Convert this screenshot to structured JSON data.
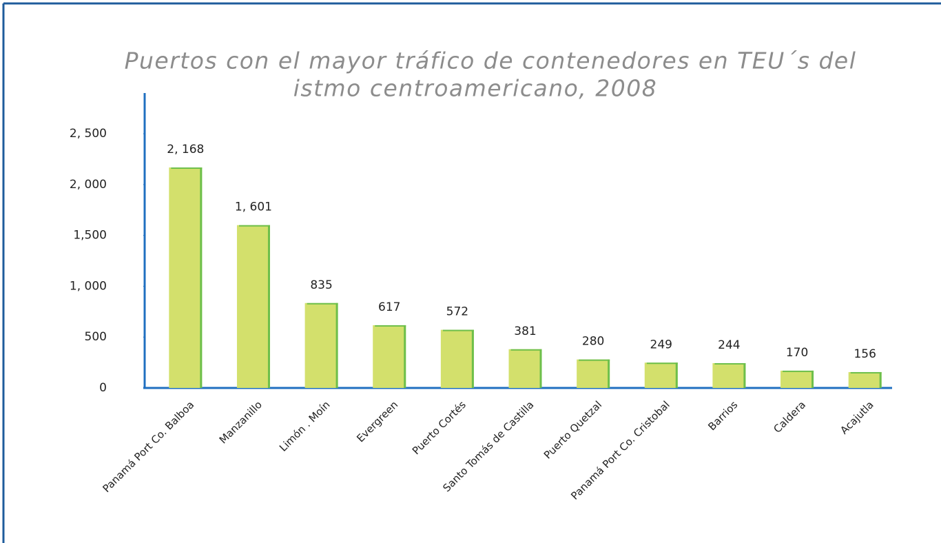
{
  "chart_data": {
    "type": "bar",
    "title": [
      "Puertos con el mayor tráfico de contenedores en TEU´s del",
      "istmo centroamericano, 2008"
    ],
    "categories": [
      "Panamá Port Co. Balboa",
      "Manzanillo",
      "Limón . Moín",
      "Evergreen",
      "Puerto Cortés",
      "Santo Tomás de Castilla",
      "Puerto Quetzal",
      "Panamá Port Co. Cristobal",
      "Barrios",
      "Caldera",
      "Acajutla"
    ],
    "values": [
      2168,
      1601,
      835,
      617,
      572,
      381,
      280,
      249,
      244,
      170,
      156
    ],
    "value_labels": [
      "2, 168",
      "1, 601",
      "835",
      "617",
      "572",
      "381",
      "280",
      "249",
      "244",
      "170",
      "156"
    ],
    "color": "#d3e06c",
    "ylim": [
      0,
      2900
    ],
    "yticks": [
      0,
      500,
      {
        "value": 1000,
        "label": "1, 000"
      },
      {
        "value": 1500,
        "label": "1,500"
      },
      {
        "value": 2000,
        "label": "2, 000"
      },
      {
        "value": 2500,
        "label": "2, 500"
      }
    ],
    "grid": false
  }
}
